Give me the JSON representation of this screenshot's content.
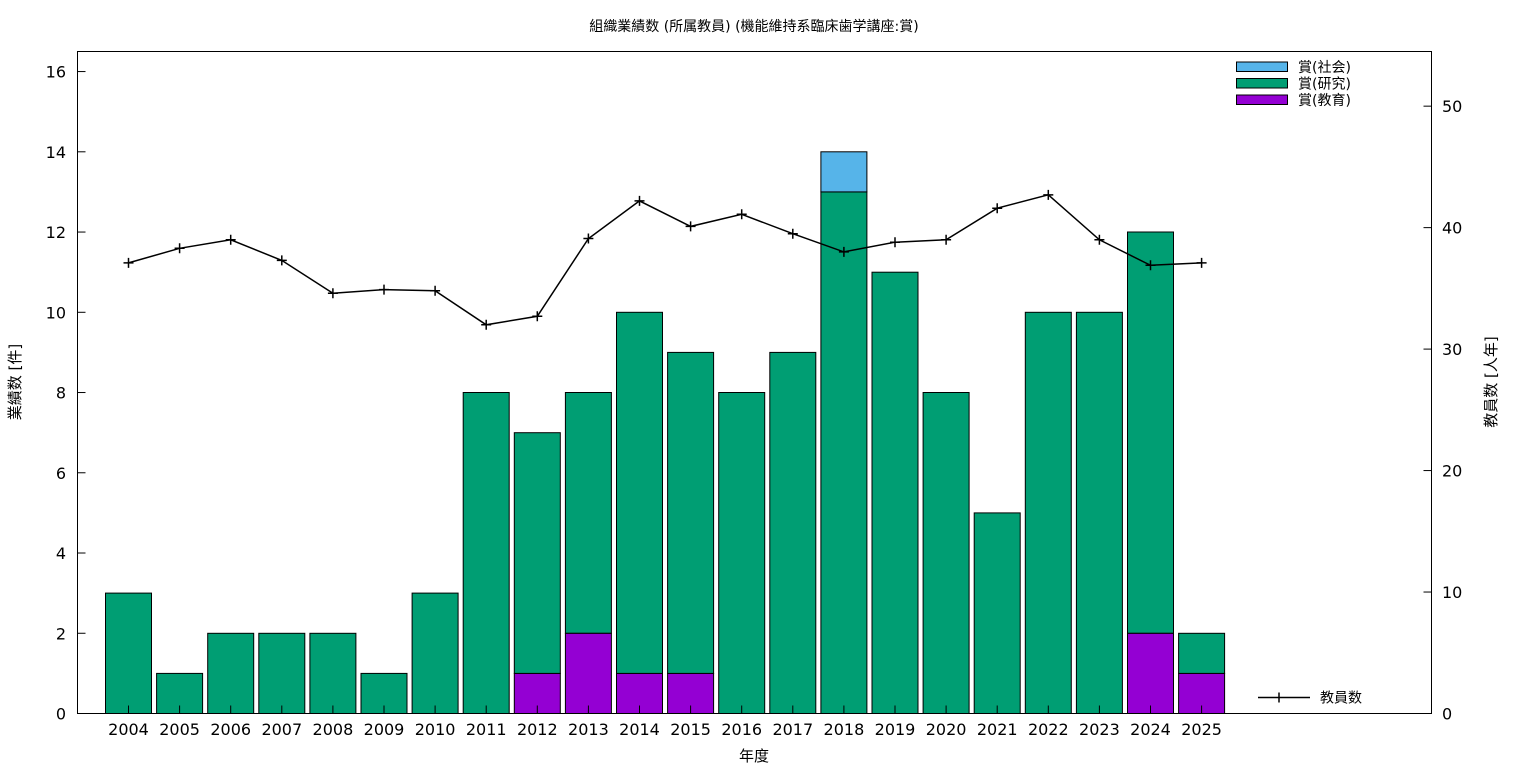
{
  "chart_data": {
    "type": "bar",
    "title": "組織業績数 (所属教員) (機能維持系臨床歯学講座:賞)",
    "xlabel": "年度",
    "ylabel": "業績数 [件]",
    "y2label": "教員数 [人年]",
    "ylim": [
      0,
      16.5
    ],
    "y2lim": [
      0,
      54.5
    ],
    "yticks": [
      0,
      2,
      4,
      6,
      8,
      10,
      12,
      14,
      16
    ],
    "y2ticks": [
      0,
      10,
      20,
      30,
      40,
      50
    ],
    "grid": false,
    "legend_position": "top-right",
    "categories": [
      "2004",
      "2005",
      "2006",
      "2007",
      "2008",
      "2009",
      "2010",
      "2011",
      "2012",
      "2013",
      "2014",
      "2015",
      "2016",
      "2017",
      "2018",
      "2019",
      "2020",
      "2021",
      "2022",
      "2023",
      "2024",
      "2025"
    ],
    "series": [
      {
        "name": "賞(教育)",
        "color": "#9400d3",
        "values": [
          0,
          0,
          0,
          0,
          0,
          0,
          0,
          0,
          1,
          2,
          1,
          1,
          0,
          0,
          0,
          0,
          0,
          0,
          0,
          0,
          2,
          1
        ]
      },
      {
        "name": "賞(研究)",
        "color": "#009e73",
        "values": [
          3,
          1,
          2,
          2,
          2,
          1,
          3,
          8,
          6,
          6,
          9,
          8,
          8,
          9,
          13,
          11,
          8,
          5,
          10,
          10,
          10,
          1
        ]
      },
      {
        "name": "賞(社会)",
        "color": "#56b4e9",
        "values": [
          0,
          0,
          0,
          0,
          0,
          0,
          0,
          0,
          0,
          0,
          0,
          0,
          0,
          0,
          1,
          0,
          0,
          0,
          0,
          0,
          0,
          0
        ]
      }
    ],
    "line_series": {
      "name": "教員数",
      "axis": "right",
      "color": "#000000",
      "values": [
        37.1,
        38.3,
        39.0,
        37.3,
        34.6,
        34.9,
        34.8,
        32.0,
        32.7,
        39.1,
        42.2,
        40.1,
        41.1,
        39.5,
        38.0,
        38.8,
        39.0,
        41.6,
        42.7,
        39.0,
        36.9,
        37.1
      ]
    }
  }
}
